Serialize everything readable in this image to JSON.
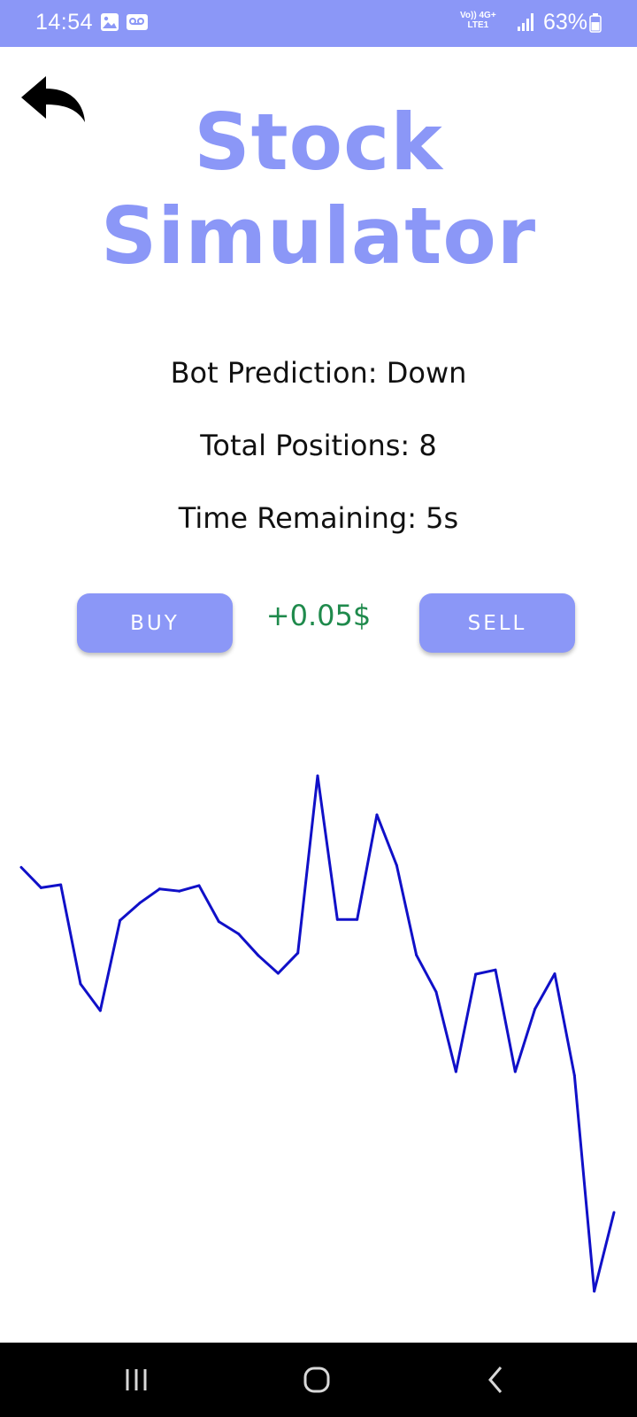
{
  "status_bar": {
    "time": "14:54",
    "icons": [
      "gallery-icon",
      "voicemail-icon",
      "volte-icon",
      "signal-icon",
      "battery-icon"
    ],
    "network_top": "Vo)) 4G+",
    "network_bottom": "LTE1",
    "battery": "63%",
    "background_color": "#8b97f7"
  },
  "header": {
    "back_icon": "back-arrow-icon",
    "title": "Stock Simulator"
  },
  "info": {
    "bot_prediction": "Bot Prediction: Down",
    "total_positions": "Total Positions: 8",
    "time_remaining": "Time Remaining: 5s"
  },
  "controls": {
    "buy_label": "BUY",
    "profit": "+0.05$",
    "sell_label": "SELL",
    "profit_color": "#1f8a4c",
    "button_color": "#8b97f7"
  },
  "chart_data": {
    "type": "line",
    "line_color": "#1010c8",
    "axes_visible": false,
    "grid": false,
    "legend": "none",
    "values": [
      100,
      95.2,
      95.9,
      72.5,
      66.2,
      87.5,
      91.6,
      94.9,
      94.4,
      95.7,
      87.2,
      84.3,
      79.2,
      75.0,
      79.8,
      121.6,
      87.7,
      87.7,
      112.4,
      100.5,
      79.3,
      70.6,
      51.8,
      74.8,
      75.8,
      51.8,
      66.6,
      74.9,
      50.9,
      0,
      18.6
    ],
    "ylim": [
      0,
      121.6
    ]
  },
  "nav_bar": {
    "buttons": [
      "recent-apps-icon",
      "home-icon",
      "back-icon"
    ]
  }
}
